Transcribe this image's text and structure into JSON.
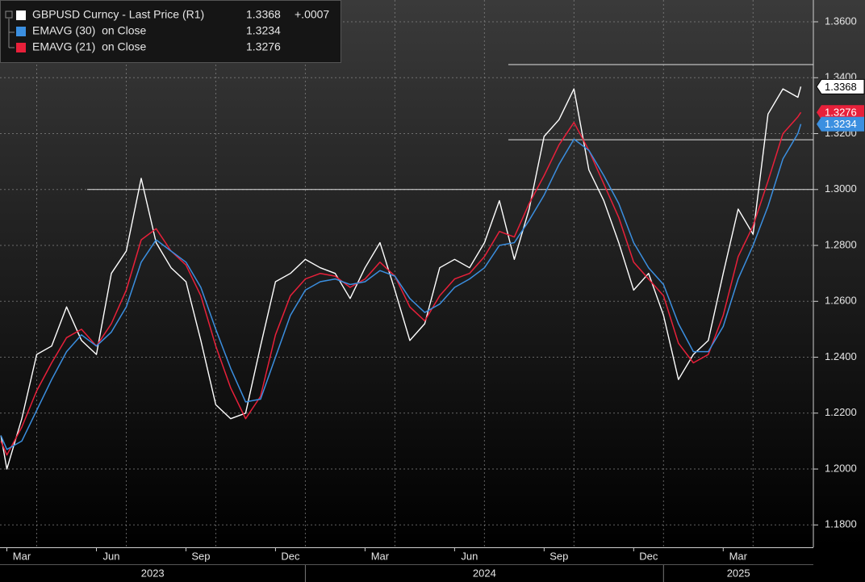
{
  "chart_data": {
    "type": "line",
    "x": [
      1.8,
      2,
      2.5,
      3,
      3.5,
      4,
      4.5,
      5,
      5.5,
      6,
      6.5,
      7,
      7.5,
      8,
      8.5,
      9,
      9.5,
      10,
      10.5,
      11,
      11.5,
      12,
      12.5,
      13,
      13.5,
      14,
      14.5,
      15,
      15.5,
      16,
      16.5,
      17,
      17.5,
      18,
      18.5,
      19,
      19.5,
      20,
      20.5,
      21,
      21.5,
      22,
      22.5,
      23,
      23.5,
      24,
      24.5,
      25,
      25.5,
      26,
      26.5,
      27,
      27.5,
      28,
      28.5,
      28.6
    ],
    "series": [
      {
        "name": "GBPUSD Curncy - Last Price (R1)",
        "color": "#ffffff",
        "last": 1.3368,
        "change": {
          "value": 0.0007,
          "label": "+.0007"
        },
        "values": [
          1.212,
          1.2,
          1.218,
          1.241,
          1.244,
          1.258,
          1.246,
          1.241,
          1.27,
          1.278,
          1.304,
          1.281,
          1.272,
          1.267,
          1.246,
          1.223,
          1.218,
          1.22,
          1.244,
          1.267,
          1.27,
          1.275,
          1.272,
          1.27,
          1.261,
          1.272,
          1.281,
          1.264,
          1.246,
          1.252,
          1.272,
          1.275,
          1.272,
          1.281,
          1.296,
          1.275,
          1.293,
          1.319,
          1.325,
          1.336,
          1.307,
          1.296,
          1.281,
          1.264,
          1.27,
          1.255,
          1.232,
          1.241,
          1.246,
          1.27,
          1.293,
          1.284,
          1.327,
          1.336,
          1.333,
          1.3368
        ]
      },
      {
        "name": "EMAVG (30)  on Close",
        "color": "#3b8fe0",
        "last": 1.3234,
        "values": [
          1.212,
          1.207,
          1.21,
          1.221,
          1.232,
          1.242,
          1.248,
          1.244,
          1.249,
          1.258,
          1.274,
          1.282,
          1.278,
          1.274,
          1.265,
          1.25,
          1.236,
          1.224,
          1.225,
          1.24,
          1.255,
          1.264,
          1.267,
          1.268,
          1.266,
          1.267,
          1.271,
          1.269,
          1.261,
          1.256,
          1.259,
          1.265,
          1.268,
          1.272,
          1.28,
          1.281,
          1.289,
          1.298,
          1.309,
          1.318,
          1.314,
          1.305,
          1.295,
          1.281,
          1.272,
          1.266,
          1.252,
          1.242,
          1.242,
          1.251,
          1.268,
          1.28,
          1.294,
          1.311,
          1.32,
          1.3234
        ]
      },
      {
        "name": "EMAVG (21)  on Close",
        "color": "#e8203a",
        "last": 1.3276,
        "values": [
          1.21,
          1.205,
          1.215,
          1.228,
          1.238,
          1.247,
          1.25,
          1.244,
          1.252,
          1.264,
          1.282,
          1.286,
          1.278,
          1.273,
          1.262,
          1.244,
          1.229,
          1.218,
          1.226,
          1.248,
          1.262,
          1.268,
          1.27,
          1.269,
          1.265,
          1.268,
          1.274,
          1.269,
          1.258,
          1.253,
          1.262,
          1.268,
          1.27,
          1.276,
          1.285,
          1.283,
          1.295,
          1.305,
          1.316,
          1.324,
          1.314,
          1.302,
          1.29,
          1.274,
          1.268,
          1.262,
          1.245,
          1.238,
          1.241,
          1.255,
          1.276,
          1.287,
          1.303,
          1.32,
          1.326,
          1.3276
        ]
      }
    ],
    "xlim": [
      1.77,
      29.02
    ],
    "ylim": [
      1.172,
      1.3678
    ],
    "xticks": [
      {
        "value": 2,
        "label": "Mar"
      },
      {
        "value": 5,
        "label": "Jun"
      },
      {
        "value": 8,
        "label": "Sep"
      },
      {
        "value": 11,
        "label": "Dec"
      },
      {
        "value": 14,
        "label": "Mar"
      },
      {
        "value": 17,
        "label": "Jun"
      },
      {
        "value": 20,
        "label": "Sep"
      },
      {
        "value": 23,
        "label": "Dec"
      },
      {
        "value": 26,
        "label": "Mar"
      }
    ],
    "xgrid": [
      3,
      6,
      9,
      12,
      15,
      18,
      21,
      24,
      27
    ],
    "years": [
      {
        "value": 0,
        "label": "2023"
      },
      {
        "value": 12,
        "label": "2024"
      },
      {
        "value": 24,
        "label": "2025"
      }
    ],
    "yticks": [
      {
        "value": 1.18,
        "label": "1.1800"
      },
      {
        "value": 1.2,
        "label": "1.2000"
      },
      {
        "value": 1.22,
        "label": "1.2200"
      },
      {
        "value": 1.24,
        "label": "1.2400"
      },
      {
        "value": 1.26,
        "label": "1.2600"
      },
      {
        "value": 1.28,
        "label": "1.2800"
      },
      {
        "value": 1.3,
        "label": "1.3000"
      },
      {
        "value": 1.32,
        "label": "1.3200"
      },
      {
        "value": 1.34,
        "label": "1.3400"
      },
      {
        "value": 1.36,
        "label": "1.3600"
      }
    ],
    "levels": [
      {
        "value": 1.3447,
        "from": 18.8
      },
      {
        "value": 1.3178,
        "from": 18.8
      },
      {
        "value": 1.3,
        "from": 4.69
      }
    ],
    "grid": true,
    "legend": "top-left"
  }
}
